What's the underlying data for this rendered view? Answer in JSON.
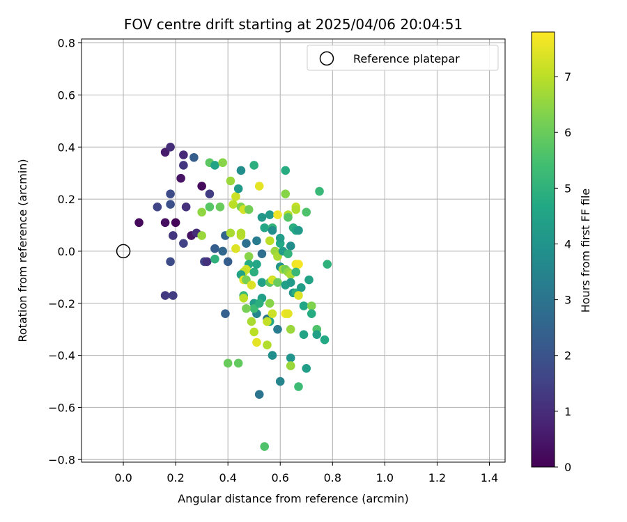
{
  "chart_data": {
    "type": "scatter",
    "title": "FOV centre drift starting at 2025/04/06 20:04:51",
    "xlabel": "Angular distance from reference (arcmin)",
    "ylabel": "Rotation from reference (arcmin)",
    "xlim": [
      -0.16,
      1.46
    ],
    "ylim": [
      -0.81,
      0.815
    ],
    "xticks": [
      0.0,
      0.2,
      0.4,
      0.6,
      0.8,
      1.0,
      1.2,
      1.4
    ],
    "xtick_labels": [
      "0.0",
      "0.2",
      "0.4",
      "0.6",
      "0.8",
      "1.0",
      "1.2",
      "1.4"
    ],
    "yticks": [
      0.8,
      0.6,
      0.4,
      0.2,
      0.0,
      -0.2,
      -0.4,
      -0.6,
      -0.8
    ],
    "ytick_labels": [
      "0.8",
      "0.6",
      "0.4",
      "0.2",
      "0.0",
      "−0.2",
      "−0.4",
      "−0.6",
      "−0.8"
    ],
    "grid": true,
    "legend": {
      "position": "top-right",
      "label": "Reference platepar"
    },
    "reference_point": {
      "x": 0.0,
      "y": 0.0
    },
    "colorbar": {
      "label": "Hours from first FF file",
      "range": [
        0,
        7.8
      ],
      "ticks": [
        0,
        1,
        2,
        3,
        4,
        5,
        6,
        7
      ],
      "tick_labels": [
        "0",
        "1",
        "2",
        "3",
        "4",
        "5",
        "6",
        "7"
      ],
      "colormap": "viridis"
    },
    "points": [
      {
        "x": 0.06,
        "y": 0.11,
        "c": 0.2
      },
      {
        "x": 0.16,
        "y": 0.38,
        "c": 0.6
      },
      {
        "x": 0.18,
        "y": 0.4,
        "c": 1.0
      },
      {
        "x": 0.16,
        "y": 0.11,
        "c": 0.3
      },
      {
        "x": 0.2,
        "y": 0.11,
        "c": 0.1
      },
      {
        "x": 0.22,
        "y": 0.28,
        "c": 0.4
      },
      {
        "x": 0.23,
        "y": 0.37,
        "c": 0.9
      },
      {
        "x": 0.23,
        "y": 0.33,
        "c": 1.2
      },
      {
        "x": 0.13,
        "y": 0.17,
        "c": 1.6
      },
      {
        "x": 0.18,
        "y": 0.22,
        "c": 1.8
      },
      {
        "x": 0.18,
        "y": 0.18,
        "c": 1.9
      },
      {
        "x": 0.24,
        "y": 0.17,
        "c": 1.1
      },
      {
        "x": 0.27,
        "y": 0.36,
        "c": 2.3
      },
      {
        "x": 0.3,
        "y": 0.25,
        "c": 0.2
      },
      {
        "x": 0.19,
        "y": 0.06,
        "c": 1.2
      },
      {
        "x": 0.23,
        "y": 0.03,
        "c": 1.5
      },
      {
        "x": 0.26,
        "y": 0.06,
        "c": 0.4
      },
      {
        "x": 0.28,
        "y": 0.07,
        "c": 1.0
      },
      {
        "x": 0.18,
        "y": -0.04,
        "c": 1.8
      },
      {
        "x": 0.16,
        "y": -0.17,
        "c": 1.3
      },
      {
        "x": 0.19,
        "y": -0.17,
        "c": 1.4
      },
      {
        "x": 0.31,
        "y": -0.04,
        "c": 1.6
      },
      {
        "x": 0.32,
        "y": -0.04,
        "c": 1.1
      },
      {
        "x": 0.33,
        "y": 0.22,
        "c": 1.4
      },
      {
        "x": 0.33,
        "y": 0.34,
        "c": 5.8
      },
      {
        "x": 0.35,
        "y": 0.33,
        "c": 4.5
      },
      {
        "x": 0.38,
        "y": 0.34,
        "c": 6.4
      },
      {
        "x": 0.3,
        "y": 0.15,
        "c": 6.5
      },
      {
        "x": 0.33,
        "y": 0.17,
        "c": 5.7
      },
      {
        "x": 0.37,
        "y": 0.17,
        "c": 6.0
      },
      {
        "x": 0.3,
        "y": 0.06,
        "c": 6.6
      },
      {
        "x": 0.35,
        "y": 0.01,
        "c": 2.3
      },
      {
        "x": 0.38,
        "y": 0.0,
        "c": 2.6
      },
      {
        "x": 0.39,
        "y": 0.06,
        "c": 2.5
      },
      {
        "x": 0.4,
        "y": -0.04,
        "c": 2.3
      },
      {
        "x": 0.35,
        "y": -0.03,
        "c": 5.0
      },
      {
        "x": 0.39,
        "y": -0.24,
        "c": 2.4
      },
      {
        "x": 0.41,
        "y": 0.27,
        "c": 6.6
      },
      {
        "x": 0.43,
        "y": 0.21,
        "c": 7.2
      },
      {
        "x": 0.42,
        "y": 0.18,
        "c": 7.0
      },
      {
        "x": 0.45,
        "y": 0.31,
        "c": 3.8
      },
      {
        "x": 0.44,
        "y": 0.24,
        "c": 4.2
      },
      {
        "x": 0.45,
        "y": 0.17,
        "c": 6.3
      },
      {
        "x": 0.46,
        "y": 0.16,
        "c": 7.3
      },
      {
        "x": 0.48,
        "y": 0.16,
        "c": 6.1
      },
      {
        "x": 0.41,
        "y": 0.07,
        "c": 6.8
      },
      {
        "x": 0.43,
        "y": 0.01,
        "c": 7.4
      },
      {
        "x": 0.45,
        "y": 0.06,
        "c": 7.0
      },
      {
        "x": 0.45,
        "y": 0.07,
        "c": 6.9
      },
      {
        "x": 0.47,
        "y": 0.03,
        "c": 2.9
      },
      {
        "x": 0.48,
        "y": -0.02,
        "c": 6.4
      },
      {
        "x": 0.48,
        "y": -0.05,
        "c": 4.8
      },
      {
        "x": 0.47,
        "y": -0.07,
        "c": 7.3
      },
      {
        "x": 0.46,
        "y": -0.08,
        "c": 7.1
      },
      {
        "x": 0.45,
        "y": -0.09,
        "c": 4.5
      },
      {
        "x": 0.46,
        "y": -0.11,
        "c": 7.5
      },
      {
        "x": 0.47,
        "y": -0.11,
        "c": 6.2
      },
      {
        "x": 0.49,
        "y": -0.13,
        "c": 7.4
      },
      {
        "x": 0.5,
        "y": -0.08,
        "c": 4.9
      },
      {
        "x": 0.51,
        "y": -0.05,
        "c": 4.6
      },
      {
        "x": 0.51,
        "y": 0.04,
        "c": 3.2
      },
      {
        "x": 0.53,
        "y": -0.01,
        "c": 2.8
      },
      {
        "x": 0.5,
        "y": 0.33,
        "c": 4.9
      },
      {
        "x": 0.52,
        "y": 0.25,
        "c": 7.5
      },
      {
        "x": 0.53,
        "y": 0.13,
        "c": 4.1
      },
      {
        "x": 0.56,
        "y": 0.14,
        "c": 4.2
      },
      {
        "x": 0.54,
        "y": 0.09,
        "c": 4.6
      },
      {
        "x": 0.57,
        "y": 0.09,
        "c": 5.1
      },
      {
        "x": 0.57,
        "y": 0.08,
        "c": 3.8
      },
      {
        "x": 0.56,
        "y": 0.04,
        "c": 7.0
      },
      {
        "x": 0.58,
        "y": 0.0,
        "c": 6.6
      },
      {
        "x": 0.59,
        "y": -0.02,
        "c": 6.8
      },
      {
        "x": 0.6,
        "y": 0.03,
        "c": 4.7
      },
      {
        "x": 0.6,
        "y": 0.05,
        "c": 4.3
      },
      {
        "x": 0.53,
        "y": -0.12,
        "c": 4.4
      },
      {
        "x": 0.56,
        "y": -0.12,
        "c": 5.8
      },
      {
        "x": 0.57,
        "y": -0.11,
        "c": 7.3
      },
      {
        "x": 0.59,
        "y": -0.12,
        "c": 6.0
      },
      {
        "x": 0.6,
        "y": -0.06,
        "c": 4.0
      },
      {
        "x": 0.61,
        "y": -0.07,
        "c": 6.7
      },
      {
        "x": 0.62,
        "y": -0.13,
        "c": 4.4
      },
      {
        "x": 0.46,
        "y": -0.17,
        "c": 5.2
      },
      {
        "x": 0.46,
        "y": -0.18,
        "c": 7.0
      },
      {
        "x": 0.5,
        "y": -0.2,
        "c": 4.3
      },
      {
        "x": 0.51,
        "y": -0.24,
        "c": 3.6
      },
      {
        "x": 0.5,
        "y": -0.22,
        "c": 5.3
      },
      {
        "x": 0.53,
        "y": -0.18,
        "c": 4.4
      },
      {
        "x": 0.52,
        "y": -0.2,
        "c": 4.9
      },
      {
        "x": 0.56,
        "y": -0.2,
        "c": 6.4
      },
      {
        "x": 0.55,
        "y": -0.26,
        "c": 3.1
      },
      {
        "x": 0.56,
        "y": -0.27,
        "c": 4.6
      },
      {
        "x": 0.55,
        "y": -0.27,
        "c": 7.1
      },
      {
        "x": 0.57,
        "y": -0.24,
        "c": 7.2
      },
      {
        "x": 0.47,
        "y": -0.22,
        "c": 6.2
      },
      {
        "x": 0.49,
        "y": -0.27,
        "c": 6.8
      },
      {
        "x": 0.5,
        "y": -0.31,
        "c": 7.0
      },
      {
        "x": 0.51,
        "y": -0.35,
        "c": 7.5
      },
      {
        "x": 0.55,
        "y": -0.36,
        "c": 6.9
      },
      {
        "x": 0.59,
        "y": -0.3,
        "c": 3.2
      },
      {
        "x": 0.62,
        "y": -0.24,
        "c": 7.6
      },
      {
        "x": 0.63,
        "y": -0.24,
        "c": 7.5
      },
      {
        "x": 0.64,
        "y": -0.3,
        "c": 6.6
      },
      {
        "x": 0.57,
        "y": -0.4,
        "c": 3.8
      },
      {
        "x": 0.64,
        "y": -0.41,
        "c": 4.0
      },
      {
        "x": 0.64,
        "y": -0.44,
        "c": 6.9
      },
      {
        "x": 0.64,
        "y": -0.44,
        "c": 6.6
      },
      {
        "x": 0.4,
        "y": -0.43,
        "c": 6.0
      },
      {
        "x": 0.44,
        "y": -0.43,
        "c": 5.9
      },
      {
        "x": 0.6,
        "y": -0.5,
        "c": 3.5
      },
      {
        "x": 0.52,
        "y": -0.55,
        "c": 3.0
      },
      {
        "x": 0.67,
        "y": -0.52,
        "c": 5.3
      },
      {
        "x": 0.54,
        "y": -0.75,
        "c": 5.6
      },
      {
        "x": 0.62,
        "y": 0.31,
        "c": 4.8
      },
      {
        "x": 0.62,
        "y": 0.22,
        "c": 6.4
      },
      {
        "x": 0.59,
        "y": 0.14,
        "c": 7.6
      },
      {
        "x": 0.63,
        "y": 0.14,
        "c": 6.9
      },
      {
        "x": 0.63,
        "y": 0.13,
        "c": 5.7
      },
      {
        "x": 0.66,
        "y": 0.17,
        "c": 7.1
      },
      {
        "x": 0.66,
        "y": 0.16,
        "c": 6.9
      },
      {
        "x": 0.7,
        "y": 0.15,
        "c": 5.6
      },
      {
        "x": 0.65,
        "y": 0.09,
        "c": 4.9
      },
      {
        "x": 0.66,
        "y": 0.08,
        "c": 4.6
      },
      {
        "x": 0.67,
        "y": 0.08,
        "c": 4.2
      },
      {
        "x": 0.64,
        "y": 0.02,
        "c": 3.8
      },
      {
        "x": 0.61,
        "y": 0.0,
        "c": 4.3
      },
      {
        "x": 0.63,
        "y": -0.01,
        "c": 5.1
      },
      {
        "x": 0.62,
        "y": -0.07,
        "c": 6.1
      },
      {
        "x": 0.63,
        "y": -0.08,
        "c": 6.5
      },
      {
        "x": 0.64,
        "y": -0.09,
        "c": 6.8
      },
      {
        "x": 0.66,
        "y": -0.05,
        "c": 7.6
      },
      {
        "x": 0.67,
        "y": -0.05,
        "c": 7.7
      },
      {
        "x": 0.66,
        "y": -0.08,
        "c": 5.2
      },
      {
        "x": 0.64,
        "y": -0.12,
        "c": 4.2
      },
      {
        "x": 0.65,
        "y": -0.16,
        "c": 4.0
      },
      {
        "x": 0.66,
        "y": -0.16,
        "c": 4.9
      },
      {
        "x": 0.68,
        "y": -0.14,
        "c": 4.3
      },
      {
        "x": 0.67,
        "y": -0.17,
        "c": 7.4
      },
      {
        "x": 0.69,
        "y": -0.21,
        "c": 4.6
      },
      {
        "x": 0.72,
        "y": -0.21,
        "c": 6.3
      },
      {
        "x": 0.72,
        "y": -0.24,
        "c": 4.8
      },
      {
        "x": 0.69,
        "y": -0.32,
        "c": 4.5
      },
      {
        "x": 0.74,
        "y": -0.3,
        "c": 5.6
      },
      {
        "x": 0.74,
        "y": -0.32,
        "c": 4.4
      },
      {
        "x": 0.77,
        "y": -0.34,
        "c": 4.7
      },
      {
        "x": 0.7,
        "y": -0.45,
        "c": 4.3
      },
      {
        "x": 0.71,
        "y": -0.11,
        "c": 4.5
      },
      {
        "x": 0.75,
        "y": 0.23,
        "c": 5.2
      },
      {
        "x": 0.78,
        "y": -0.05,
        "c": 5.0
      }
    ]
  }
}
